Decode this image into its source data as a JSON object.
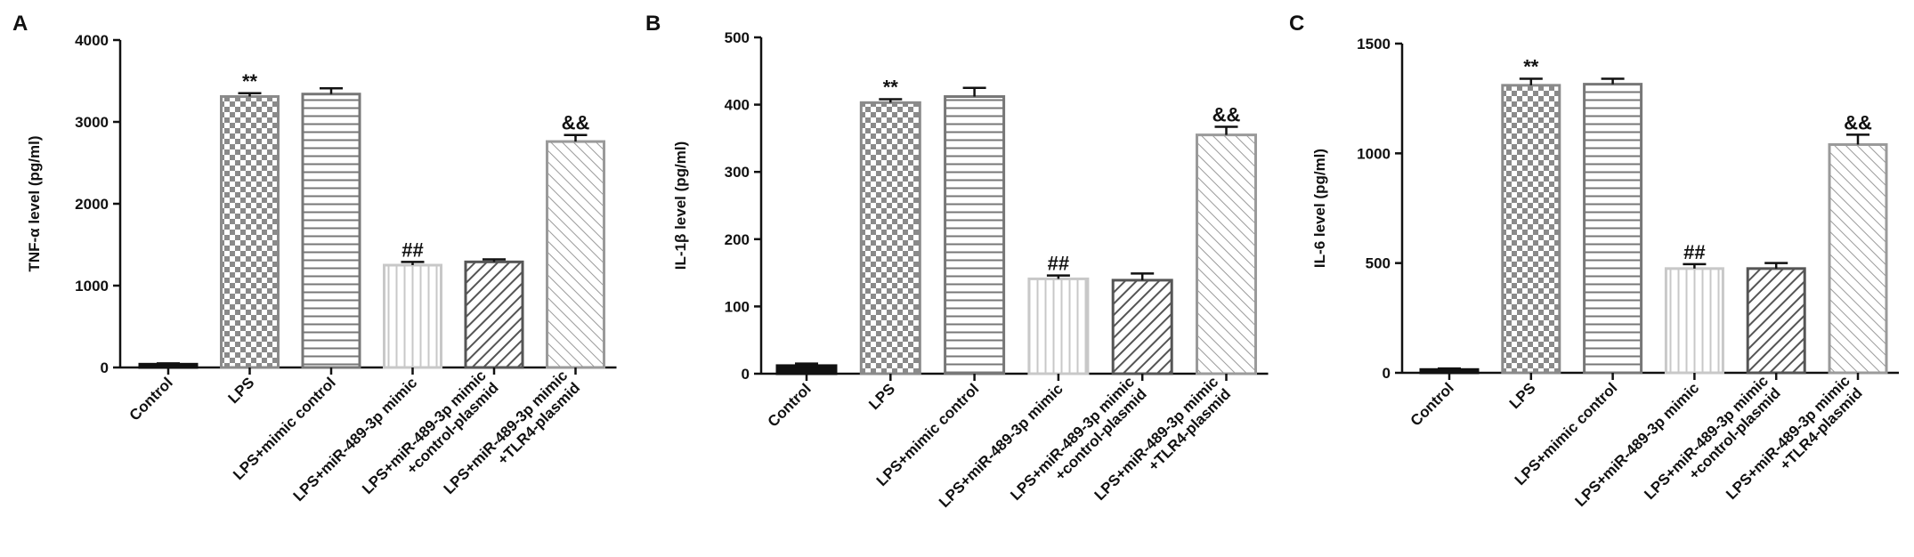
{
  "chart_data": [
    {
      "panel": "A",
      "type": "bar",
      "ylabel": "TNF-α level (pg/ml)",
      "ylim": [
        0,
        4000
      ],
      "yticks": [
        0,
        1000,
        2000,
        3000,
        4000
      ],
      "categories": [
        "Control",
        "LPS",
        "LPS+mimic control",
        "LPS+miR-489-3p mimic",
        "LPS+miR-489-3p mimic\n+control-plasmid",
        "LPS+miR-489-3p mimic\n+TLR4-plasmid"
      ],
      "values": [
        40,
        3310,
        3340,
        1250,
        1290,
        2760
      ],
      "errors": [
        10,
        40,
        70,
        40,
        30,
        80
      ],
      "annotations": [
        "",
        "**",
        "",
        "##",
        "",
        "&&"
      ],
      "patterns": [
        "black",
        "check",
        "hlines",
        "vlines",
        "diag-dark",
        "diag-light"
      ],
      "grid": false
    },
    {
      "panel": "B",
      "type": "bar",
      "ylabel": "IL-1β level (pg/ml)",
      "ylim": [
        0,
        500
      ],
      "yticks": [
        0,
        100,
        200,
        300,
        400,
        500
      ],
      "categories": [
        "Control",
        "LPS",
        "LPS+mimic control",
        "LPS+miR-489-3p mimic",
        "LPS+miR-489-3p mimic\n+control-plasmid",
        "LPS+miR-489-3p mimic\n+TLR4-plasmid"
      ],
      "values": [
        12,
        403,
        412,
        141,
        139,
        355
      ],
      "errors": [
        3,
        5,
        13,
        5,
        10,
        12
      ],
      "annotations": [
        "",
        "**",
        "",
        "##",
        "",
        "&&"
      ],
      "patterns": [
        "black",
        "check",
        "hlines",
        "vlines",
        "diag-dark",
        "diag-light"
      ],
      "grid": false
    },
    {
      "panel": "C",
      "type": "bar",
      "ylabel": "IL-6 level (pg/ml)",
      "ylim": [
        0,
        1500
      ],
      "yticks": [
        0,
        500,
        1000,
        1500
      ],
      "categories": [
        "Control",
        "LPS",
        "LPS+mimic control",
        "LPS+miR-489-3p mimic",
        "LPS+miR-489-3p mimic\n+control-plasmid",
        "LPS+miR-489-3p mimic\n+TLR4-plasmid"
      ],
      "values": [
        15,
        1310,
        1315,
        475,
        475,
        1040
      ],
      "errors": [
        5,
        30,
        25,
        20,
        25,
        45
      ],
      "annotations": [
        "",
        "**",
        "",
        "##",
        "",
        "&&"
      ],
      "patterns": [
        "black",
        "check",
        "hlines",
        "vlines",
        "diag-dark",
        "diag-light"
      ],
      "grid": false
    }
  ]
}
